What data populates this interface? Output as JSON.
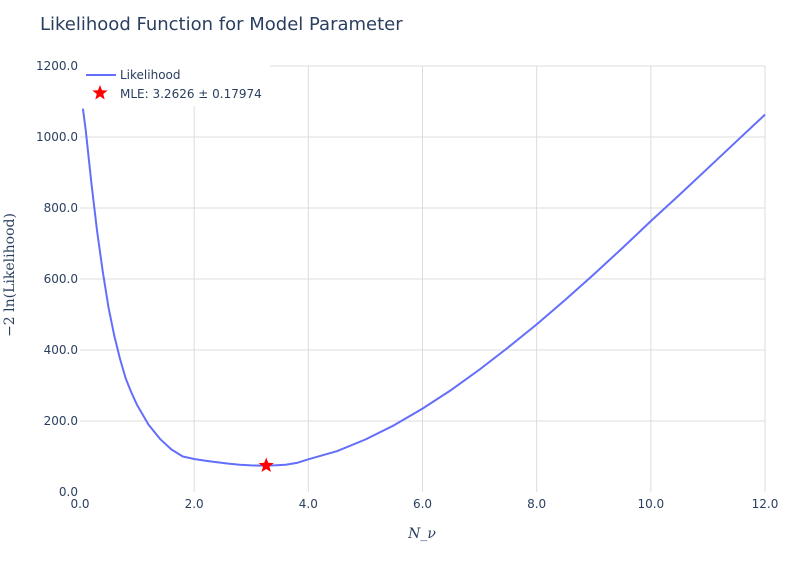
{
  "chart_data": {
    "type": "line",
    "title": "Likelihood Function for Model Parameter",
    "xlabel": "N_ν",
    "ylabel": "−2 ln(Likelihood)",
    "xlim": [
      0,
      12
    ],
    "ylim": [
      0,
      1200
    ],
    "grid": true,
    "legend_position": "top-left",
    "x_ticks": [
      "0.0",
      "2.0",
      "4.0",
      "6.0",
      "8.0",
      "10.0",
      "12.0"
    ],
    "y_ticks": [
      "0.0",
      "200.0",
      "400.0",
      "600.0",
      "800.0",
      "1000.0",
      "1200.0"
    ],
    "series": [
      {
        "name": "Likelihood",
        "color": "#636efa",
        "x": [
          0.05,
          0.1,
          0.2,
          0.3,
          0.4,
          0.5,
          0.6,
          0.7,
          0.8,
          0.9,
          1.0,
          1.2,
          1.4,
          1.6,
          1.8,
          2.0,
          2.2,
          2.4,
          2.6,
          2.8,
          3.0,
          3.2,
          3.4,
          3.6,
          3.8,
          4.0,
          4.5,
          5.0,
          5.5,
          6.0,
          6.5,
          7.0,
          7.5,
          8.0,
          8.5,
          9.0,
          9.5,
          10.0,
          10.5,
          11.0,
          11.5,
          12.0
        ],
        "y": [
          1080,
          1020,
          870,
          735,
          620,
          520,
          440,
          375,
          320,
          280,
          245,
          190,
          150,
          120,
          100,
          93,
          88,
          84,
          80,
          77,
          75,
          74.5,
          75,
          77,
          82,
          92,
          115,
          148,
          188,
          235,
          287,
          345,
          407,
          472,
          541,
          613,
          687,
          763,
          837,
          912,
          988,
          1063
        ]
      }
    ],
    "mle": {
      "label": "MLE: 3.2626 ± 0.17974",
      "x": 3.2626,
      "y": 74.5,
      "color": "#ff0000"
    }
  }
}
